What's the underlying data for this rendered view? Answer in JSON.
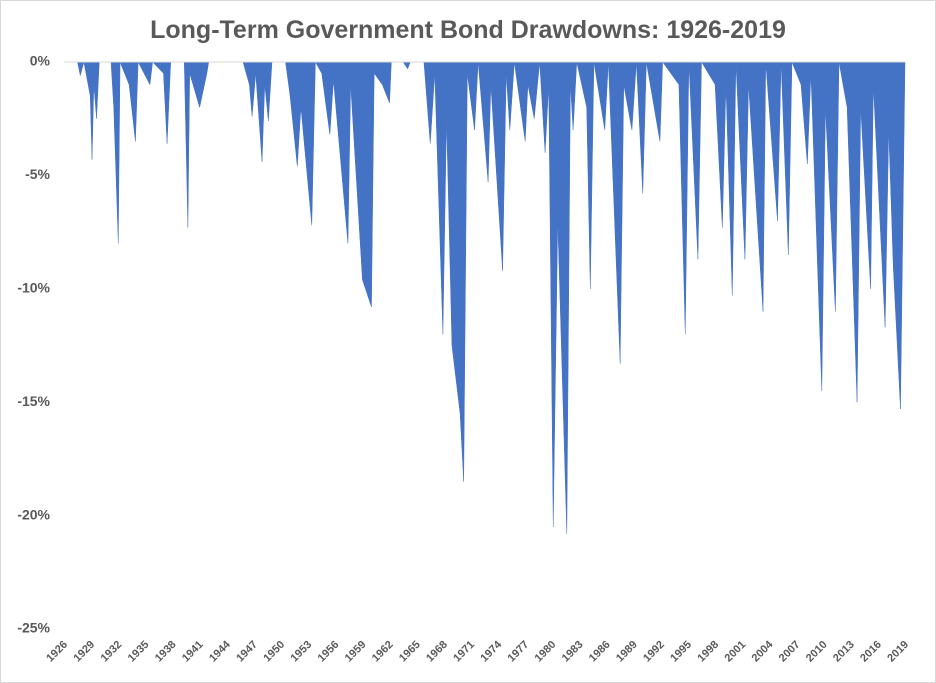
{
  "chart_data": {
    "type": "area",
    "title": "Long-Term Government Bond Drawdowns: 1926-2019",
    "color": "#4472c4",
    "x": [
      1926,
      1927.5,
      1927.8,
      1928.2,
      1928.9,
      1929.1,
      1929.3,
      1929.6,
      1929.9,
      1931.2,
      1931.5,
      1932.0,
      1932.2,
      1933.2,
      1933.9,
      1934.2,
      1935.5,
      1935.8,
      1937.0,
      1937.4,
      1937.8,
      1939.3,
      1939.7,
      1939.9,
      1941.0,
      1941.8,
      1942.0,
      1945.8,
      1946.5,
      1946.8,
      1947.2,
      1947.9,
      1948.2,
      1948.6,
      1949.0,
      1950.5,
      1951.0,
      1951.8,
      1952.2,
      1953.4,
      1953.8,
      1954.5,
      1955.4,
      1955.8,
      1957.4,
      1957.7,
      1959.0,
      1960.0,
      1960.3,
      1961.2,
      1962.0,
      1962.2,
      1963.5,
      1964.0,
      1964.3,
      1965.8,
      1966.5,
      1967.0,
      1967.9,
      1968.3,
      1968.9,
      1969.8,
      1970.2,
      1970.6,
      1971.4,
      1971.8,
      1972.9,
      1973.2,
      1974.5,
      1974.9,
      1975.3,
      1975.8,
      1977.0,
      1977.3,
      1978.0,
      1978.6,
      1979.2,
      1979.6,
      1980.1,
      1980.6,
      1981.6,
      1982.0,
      1982.3,
      1982.7,
      1983.8,
      1984.2,
      1984.6,
      1985.8,
      1986.2,
      1987.5,
      1987.9,
      1988.8,
      1989.3,
      1990.0,
      1990.4,
      1991.9,
      1992.2,
      1994.0,
      1994.7,
      1995.1,
      1996.1,
      1996.5,
      1998.0,
      1998.8,
      1999.2,
      1999.9,
      2000.3,
      2001.3,
      2001.7,
      2003.3,
      2003.6,
      2004.9,
      2005.3,
      2006.1,
      2006.5,
      2007.5,
      2008.2,
      2008.6,
      2009.8,
      2010.2,
      2011.3,
      2011.7,
      2012.6,
      2013.7,
      2014.1,
      2015.2,
      2015.5,
      2016.8,
      2017.2,
      2017.7,
      2018.5,
      2019.0
    ],
    "values": [
      0,
      0,
      -0.6,
      0,
      -1.5,
      -4.3,
      -1,
      -2.5,
      0,
      0,
      -2,
      -8,
      0,
      -1,
      -3.5,
      0,
      -1,
      0,
      -0.5,
      -3.6,
      0,
      0,
      -7.3,
      -0.5,
      -2,
      -0.5,
      0,
      0,
      -1,
      -2.4,
      -0.5,
      -4.4,
      -1,
      -2.6,
      0,
      0,
      -1.5,
      -4.6,
      -2,
      -7.2,
      0,
      -0.5,
      -3.2,
      -0.8,
      -8,
      -1,
      -9.6,
      -10.8,
      -0.5,
      -1,
      -1.8,
      0,
      0,
      -0.3,
      0,
      0,
      -3.6,
      -0.5,
      -12,
      -2.5,
      -12.5,
      -15.5,
      -18.5,
      -0.5,
      -3,
      0,
      -5.3,
      -1,
      -9.2,
      -0.5,
      -3,
      0,
      -3.5,
      -1,
      -2.5,
      0,
      -4,
      -1,
      -20.5,
      -7,
      -20.8,
      -1,
      -3,
      0,
      -2,
      -10,
      0,
      -3,
      0,
      -13.3,
      -1,
      -3,
      0,
      -5.8,
      0,
      -3.5,
      0,
      -1,
      -12,
      0,
      -8.7,
      0,
      -1,
      -7.3,
      -1,
      -10.3,
      0,
      -8.7,
      -1,
      -11,
      0,
      -7,
      0,
      -8.5,
      0,
      -1,
      -4.5,
      -0.5,
      -14.5,
      -2,
      -11,
      0,
      -2,
      -15,
      -2,
      -10,
      -1,
      -11.7,
      -3,
      -9,
      -15.3,
      0
    ],
    "xlim": [
      1926,
      2019
    ],
    "xticks": [
      1926,
      1929,
      1932,
      1935,
      1938,
      1941,
      1944,
      1947,
      1950,
      1953,
      1956,
      1959,
      1962,
      1965,
      1968,
      1971,
      1974,
      1977,
      1980,
      1983,
      1986,
      1989,
      1992,
      1995,
      1998,
      2001,
      2004,
      2007,
      2010,
      2013,
      2016,
      2019
    ],
    "ylim": [
      -25,
      0
    ],
    "yticks": [
      {
        "value": 0,
        "label": "0%"
      },
      {
        "value": -5,
        "label": "-5%"
      },
      {
        "value": -10,
        "label": "-10%"
      },
      {
        "value": -15,
        "label": "-15%"
      },
      {
        "value": -20,
        "label": "-20%"
      },
      {
        "value": -25,
        "label": "-25%"
      }
    ],
    "grid": false
  }
}
